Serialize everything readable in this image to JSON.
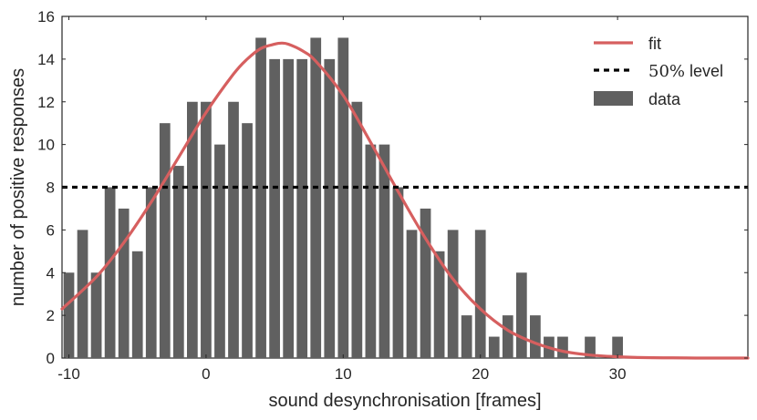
{
  "chart_data": {
    "type": "bar",
    "xlabel": "sound desynchronisation [frames]",
    "ylabel": "number of positive responses",
    "xlim": [
      -10.5,
      39.5
    ],
    "ylim": [
      0,
      16
    ],
    "xticks": [
      -10,
      0,
      10,
      20,
      30
    ],
    "yticks": [
      0,
      2,
      4,
      6,
      8,
      10,
      12,
      14,
      16
    ],
    "grid": false,
    "legend_position": "top-right",
    "colors": {
      "bars": "#606060",
      "fit": "#d65f5f",
      "level": "#000000"
    },
    "legend": [
      {
        "label": "fit",
        "kind": "line"
      },
      {
        "label_prefix": "50%",
        "label_suffix": " level",
        "kind": "dashed"
      },
      {
        "label": "data",
        "kind": "bar"
      }
    ],
    "series": [
      {
        "name": "data",
        "type": "bar",
        "x": [
          -10,
          -9,
          -8,
          -7,
          -6,
          -5,
          -4,
          -3,
          -2,
          -1,
          0,
          1,
          2,
          3,
          4,
          5,
          6,
          7,
          8,
          9,
          10,
          11,
          12,
          13,
          14,
          15,
          16,
          17,
          18,
          19,
          20,
          21,
          22,
          23,
          24,
          25,
          26,
          27,
          28,
          29,
          30
        ],
        "values": [
          4,
          6,
          4,
          8,
          7,
          5,
          8,
          11,
          9,
          12,
          12,
          10,
          12,
          11,
          15,
          14,
          14,
          14,
          15,
          14,
          15,
          12,
          10,
          10,
          8,
          6,
          7,
          5,
          6,
          2,
          6,
          1,
          2,
          4,
          2,
          1,
          1,
          0,
          1,
          0,
          1
        ]
      },
      {
        "name": "fit",
        "type": "line",
        "x": [
          -10.5,
          -8,
          -6,
          -4,
          -2,
          0,
          2,
          3,
          4,
          5,
          5.5,
          6,
          7,
          8,
          10,
          12,
          14,
          16,
          18,
          20,
          22,
          24,
          26,
          28,
          30,
          32,
          34,
          36,
          38,
          39.5
        ],
        "values": [
          2.3,
          3.8,
          5.4,
          7.3,
          9.4,
          11.5,
          13.3,
          14.0,
          14.5,
          14.7,
          14.75,
          14.7,
          14.4,
          13.9,
          12.3,
          10.1,
          7.8,
          5.6,
          3.7,
          2.3,
          1.3,
          0.7,
          0.32,
          0.14,
          0.06,
          0.02,
          0.01,
          0.0,
          0.0,
          0.0
        ]
      },
      {
        "name": "50% level",
        "type": "hline",
        "value": 8
      }
    ]
  }
}
